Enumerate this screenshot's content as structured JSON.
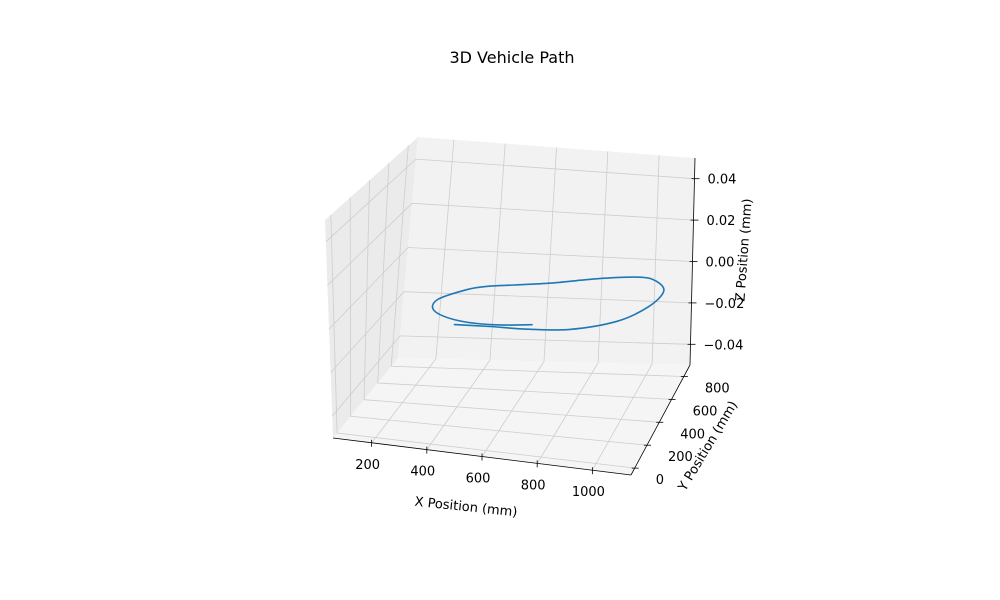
{
  "chart_data": {
    "type": "line3d",
    "title": "3D Vehicle Path",
    "xlabel": "X Position (mm)",
    "ylabel": "Y Position (mm)",
    "zlabel": "Z Position (mm)",
    "x_ticks": [
      200,
      400,
      600,
      800,
      1000
    ],
    "y_ticks": [
      0,
      200,
      400,
      600,
      800
    ],
    "z_ticks": [
      -0.04,
      -0.02,
      0.0,
      0.02,
      0.04
    ],
    "x_tick_labels": [
      "200",
      "400",
      "600",
      "800",
      "1000"
    ],
    "y_tick_labels": [
      "0",
      "200",
      "400",
      "600",
      "800"
    ],
    "z_tick_labels": [
      "−0.04",
      "−0.02",
      "0.00",
      "0.02",
      "0.04"
    ],
    "xlim": [
      60,
      1140
    ],
    "ylim": [
      -60,
      900
    ],
    "zlim": [
      -0.05,
      0.05
    ],
    "grid": true,
    "series": [
      {
        "color": "#1f77b4",
        "x": [
          717,
          585,
          450,
          350,
          330,
          405,
          472,
          555,
          680,
          830,
          980,
          1050,
          1100,
          1078,
          1000,
          857,
          715,
          580,
          456
        ],
        "y": [
          220,
          180,
          185,
          255,
          370,
          500,
          550,
          580,
          625,
          695,
          735,
          710,
          625,
          480,
          330,
          215,
          175,
          160,
          140
        ],
        "z": [
          0,
          0,
          0,
          0,
          0,
          0,
          0,
          0,
          0,
          0,
          0,
          0,
          0,
          0,
          0,
          0,
          0,
          0,
          0
        ]
      }
    ]
  }
}
